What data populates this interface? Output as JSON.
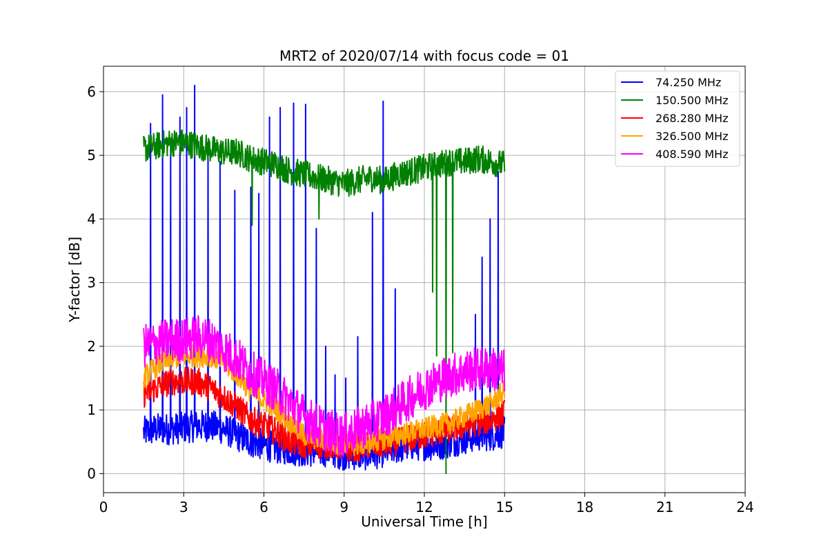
{
  "chart_data": {
    "type": "line",
    "title": "MRT2 of 2020/07/14 with focus code = 01",
    "xlabel": "Universal Time [h]",
    "ylabel": "Y-factor [dB]",
    "xlim": [
      0,
      24
    ],
    "ylim": [
      -0.3,
      6.4
    ],
    "xticks": [
      0,
      3,
      6,
      9,
      12,
      15,
      18,
      21,
      24
    ],
    "yticks": [
      0,
      1,
      2,
      3,
      4,
      5,
      6
    ],
    "grid": true,
    "legend_position": "top-right",
    "series": [
      {
        "name": " 74.250 MHz",
        "color": "#0000ff",
        "x": [
          1.5,
          2.0,
          2.5,
          3.0,
          3.5,
          4.0,
          4.5,
          5.0,
          5.5,
          6.0,
          6.5,
          7.0,
          7.5,
          8.0,
          8.5,
          9.0,
          9.5,
          10.0,
          10.5,
          11.0,
          11.5,
          12.0,
          12.5,
          13.0,
          13.5,
          14.0,
          14.5,
          15.0
        ],
        "values": [
          0.65,
          0.7,
          0.7,
          0.72,
          0.75,
          0.75,
          0.7,
          0.6,
          0.5,
          0.45,
          0.4,
          0.38,
          0.35,
          0.35,
          0.35,
          0.3,
          0.3,
          0.3,
          0.35,
          0.4,
          0.45,
          0.45,
          0.45,
          0.5,
          0.55,
          0.6,
          0.6,
          0.65
        ],
        "spikes": [
          {
            "x": 1.75,
            "y": 5.5
          },
          {
            "x": 2.2,
            "y": 5.95
          },
          {
            "x": 2.5,
            "y": 5.2
          },
          {
            "x": 2.85,
            "y": 5.6
          },
          {
            "x": 3.1,
            "y": 5.75
          },
          {
            "x": 3.4,
            "y": 6.1
          },
          {
            "x": 3.9,
            "y": 5.2
          },
          {
            "x": 4.35,
            "y": 4.9
          },
          {
            "x": 4.9,
            "y": 4.45
          },
          {
            "x": 5.5,
            "y": 4.5
          },
          {
            "x": 5.8,
            "y": 4.4
          },
          {
            "x": 6.2,
            "y": 5.6
          },
          {
            "x": 6.6,
            "y": 5.75
          },
          {
            "x": 7.1,
            "y": 5.82
          },
          {
            "x": 7.55,
            "y": 5.8
          },
          {
            "x": 7.95,
            "y": 3.85
          },
          {
            "x": 8.3,
            "y": 2.0
          },
          {
            "x": 8.65,
            "y": 1.55
          },
          {
            "x": 9.05,
            "y": 1.5
          },
          {
            "x": 9.5,
            "y": 2.15
          },
          {
            "x": 10.05,
            "y": 4.1
          },
          {
            "x": 10.45,
            "y": 5.85
          },
          {
            "x": 10.9,
            "y": 2.9
          },
          {
            "x": 13.9,
            "y": 2.5
          },
          {
            "x": 14.15,
            "y": 3.4
          },
          {
            "x": 14.45,
            "y": 4.0
          },
          {
            "x": 14.75,
            "y": 4.75
          }
        ]
      },
      {
        "name": "150.500 MHz",
        "color": "#008000",
        "x": [
          1.5,
          2.0,
          2.5,
          3.0,
          3.5,
          4.0,
          4.5,
          5.0,
          5.5,
          6.0,
          6.5,
          7.0,
          7.5,
          8.0,
          8.5,
          9.0,
          9.5,
          10.0,
          10.5,
          11.0,
          11.5,
          12.0,
          12.5,
          13.0,
          13.5,
          14.0,
          14.5,
          15.0
        ],
        "values": [
          5.1,
          5.15,
          5.2,
          5.2,
          5.15,
          5.1,
          5.05,
          5.05,
          4.95,
          4.9,
          4.85,
          4.75,
          4.7,
          4.65,
          4.6,
          4.55,
          4.6,
          4.65,
          4.6,
          4.7,
          4.75,
          4.8,
          4.85,
          4.9,
          4.9,
          4.95,
          4.9,
          4.85
        ],
        "dips": [
          {
            "x": 5.55,
            "y": 3.9
          },
          {
            "x": 8.05,
            "y": 4.0
          },
          {
            "x": 12.3,
            "y": 2.85
          },
          {
            "x": 12.45,
            "y": 1.85
          },
          {
            "x": 12.8,
            "y": 0.0
          },
          {
            "x": 13.05,
            "y": 1.9
          }
        ]
      },
      {
        "name": "268.280 MHz",
        "color": "#ff0000",
        "x": [
          1.5,
          2.0,
          2.5,
          3.0,
          3.5,
          4.0,
          4.5,
          5.0,
          5.5,
          6.0,
          6.5,
          7.0,
          7.5,
          8.0,
          8.5,
          9.0,
          9.5,
          10.0,
          10.5,
          11.0,
          11.5,
          12.0,
          12.5,
          13.0,
          13.5,
          14.0,
          14.5,
          15.0
        ],
        "values": [
          1.25,
          1.35,
          1.45,
          1.45,
          1.45,
          1.35,
          1.2,
          1.05,
          0.85,
          0.75,
          0.65,
          0.5,
          0.45,
          0.45,
          0.45,
          0.4,
          0.4,
          0.45,
          0.45,
          0.5,
          0.55,
          0.6,
          0.65,
          0.7,
          0.75,
          0.8,
          0.85,
          0.95
        ]
      },
      {
        "name": "326.500 MHz",
        "color": "#ffa500",
        "x": [
          1.5,
          2.0,
          2.5,
          3.0,
          3.5,
          4.0,
          4.5,
          5.0,
          5.5,
          6.0,
          6.5,
          7.0,
          7.5,
          8.0,
          8.5,
          9.0,
          9.5,
          10.0,
          10.5,
          11.0,
          11.5,
          12.0,
          12.5,
          13.0,
          13.5,
          14.0,
          14.5,
          15.0
        ],
        "values": [
          1.5,
          1.7,
          1.8,
          1.85,
          1.85,
          1.85,
          1.75,
          1.55,
          1.3,
          1.15,
          1.0,
          0.8,
          0.6,
          0.55,
          0.5,
          0.45,
          0.45,
          0.5,
          0.55,
          0.6,
          0.65,
          0.7,
          0.75,
          0.8,
          0.9,
          1.0,
          1.1,
          1.3
        ]
      },
      {
        "name": "408.590 MHz",
        "color": "#ff00ff",
        "x": [
          1.5,
          2.0,
          2.5,
          3.0,
          3.5,
          4.0,
          4.5,
          5.0,
          5.5,
          6.0,
          6.5,
          7.0,
          7.5,
          8.0,
          8.5,
          9.0,
          9.5,
          10.0,
          10.5,
          11.0,
          11.5,
          12.0,
          12.5,
          13.0,
          13.5,
          14.0,
          14.5,
          15.0
        ],
        "values": [
          2.0,
          2.05,
          2.1,
          2.1,
          2.15,
          2.1,
          1.95,
          1.8,
          1.6,
          1.45,
          1.3,
          1.1,
          0.9,
          0.75,
          0.65,
          0.6,
          0.7,
          0.8,
          0.9,
          1.05,
          1.2,
          1.35,
          1.45,
          1.55,
          1.6,
          1.65,
          1.65,
          1.6
        ]
      }
    ]
  }
}
